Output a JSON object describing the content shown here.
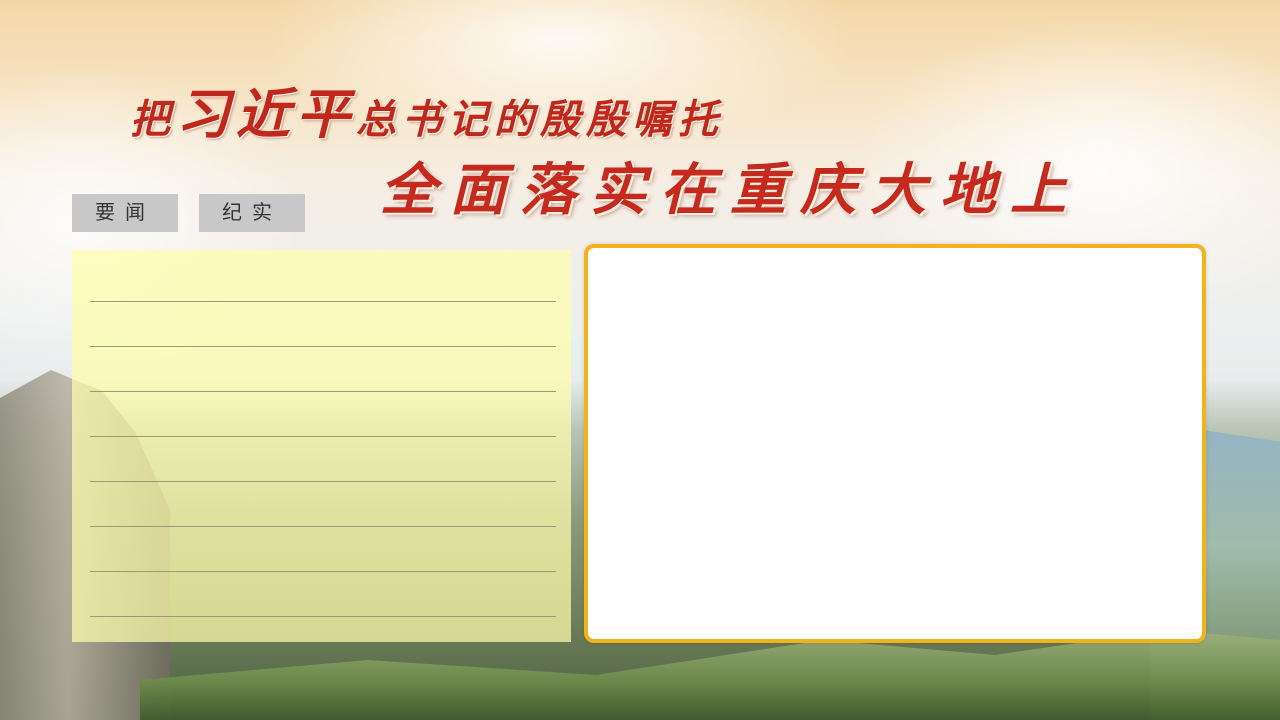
{
  "title": {
    "line1_prefix": "把",
    "line1_name": "习近平",
    "line1_suffix": "总书记的殷殷嘱托",
    "line2": "全面落实在重庆大地上"
  },
  "tabs": [
    {
      "label": "要闻"
    },
    {
      "label": "纪实"
    }
  ],
  "colors": {
    "title_red": "#c0281c",
    "note_panel_yellow": "#fffdaa",
    "frame_border_orange": "#f1b21c",
    "tab_gray": "#c8c8c8"
  },
  "note_panel": {
    "line_count": 8
  }
}
